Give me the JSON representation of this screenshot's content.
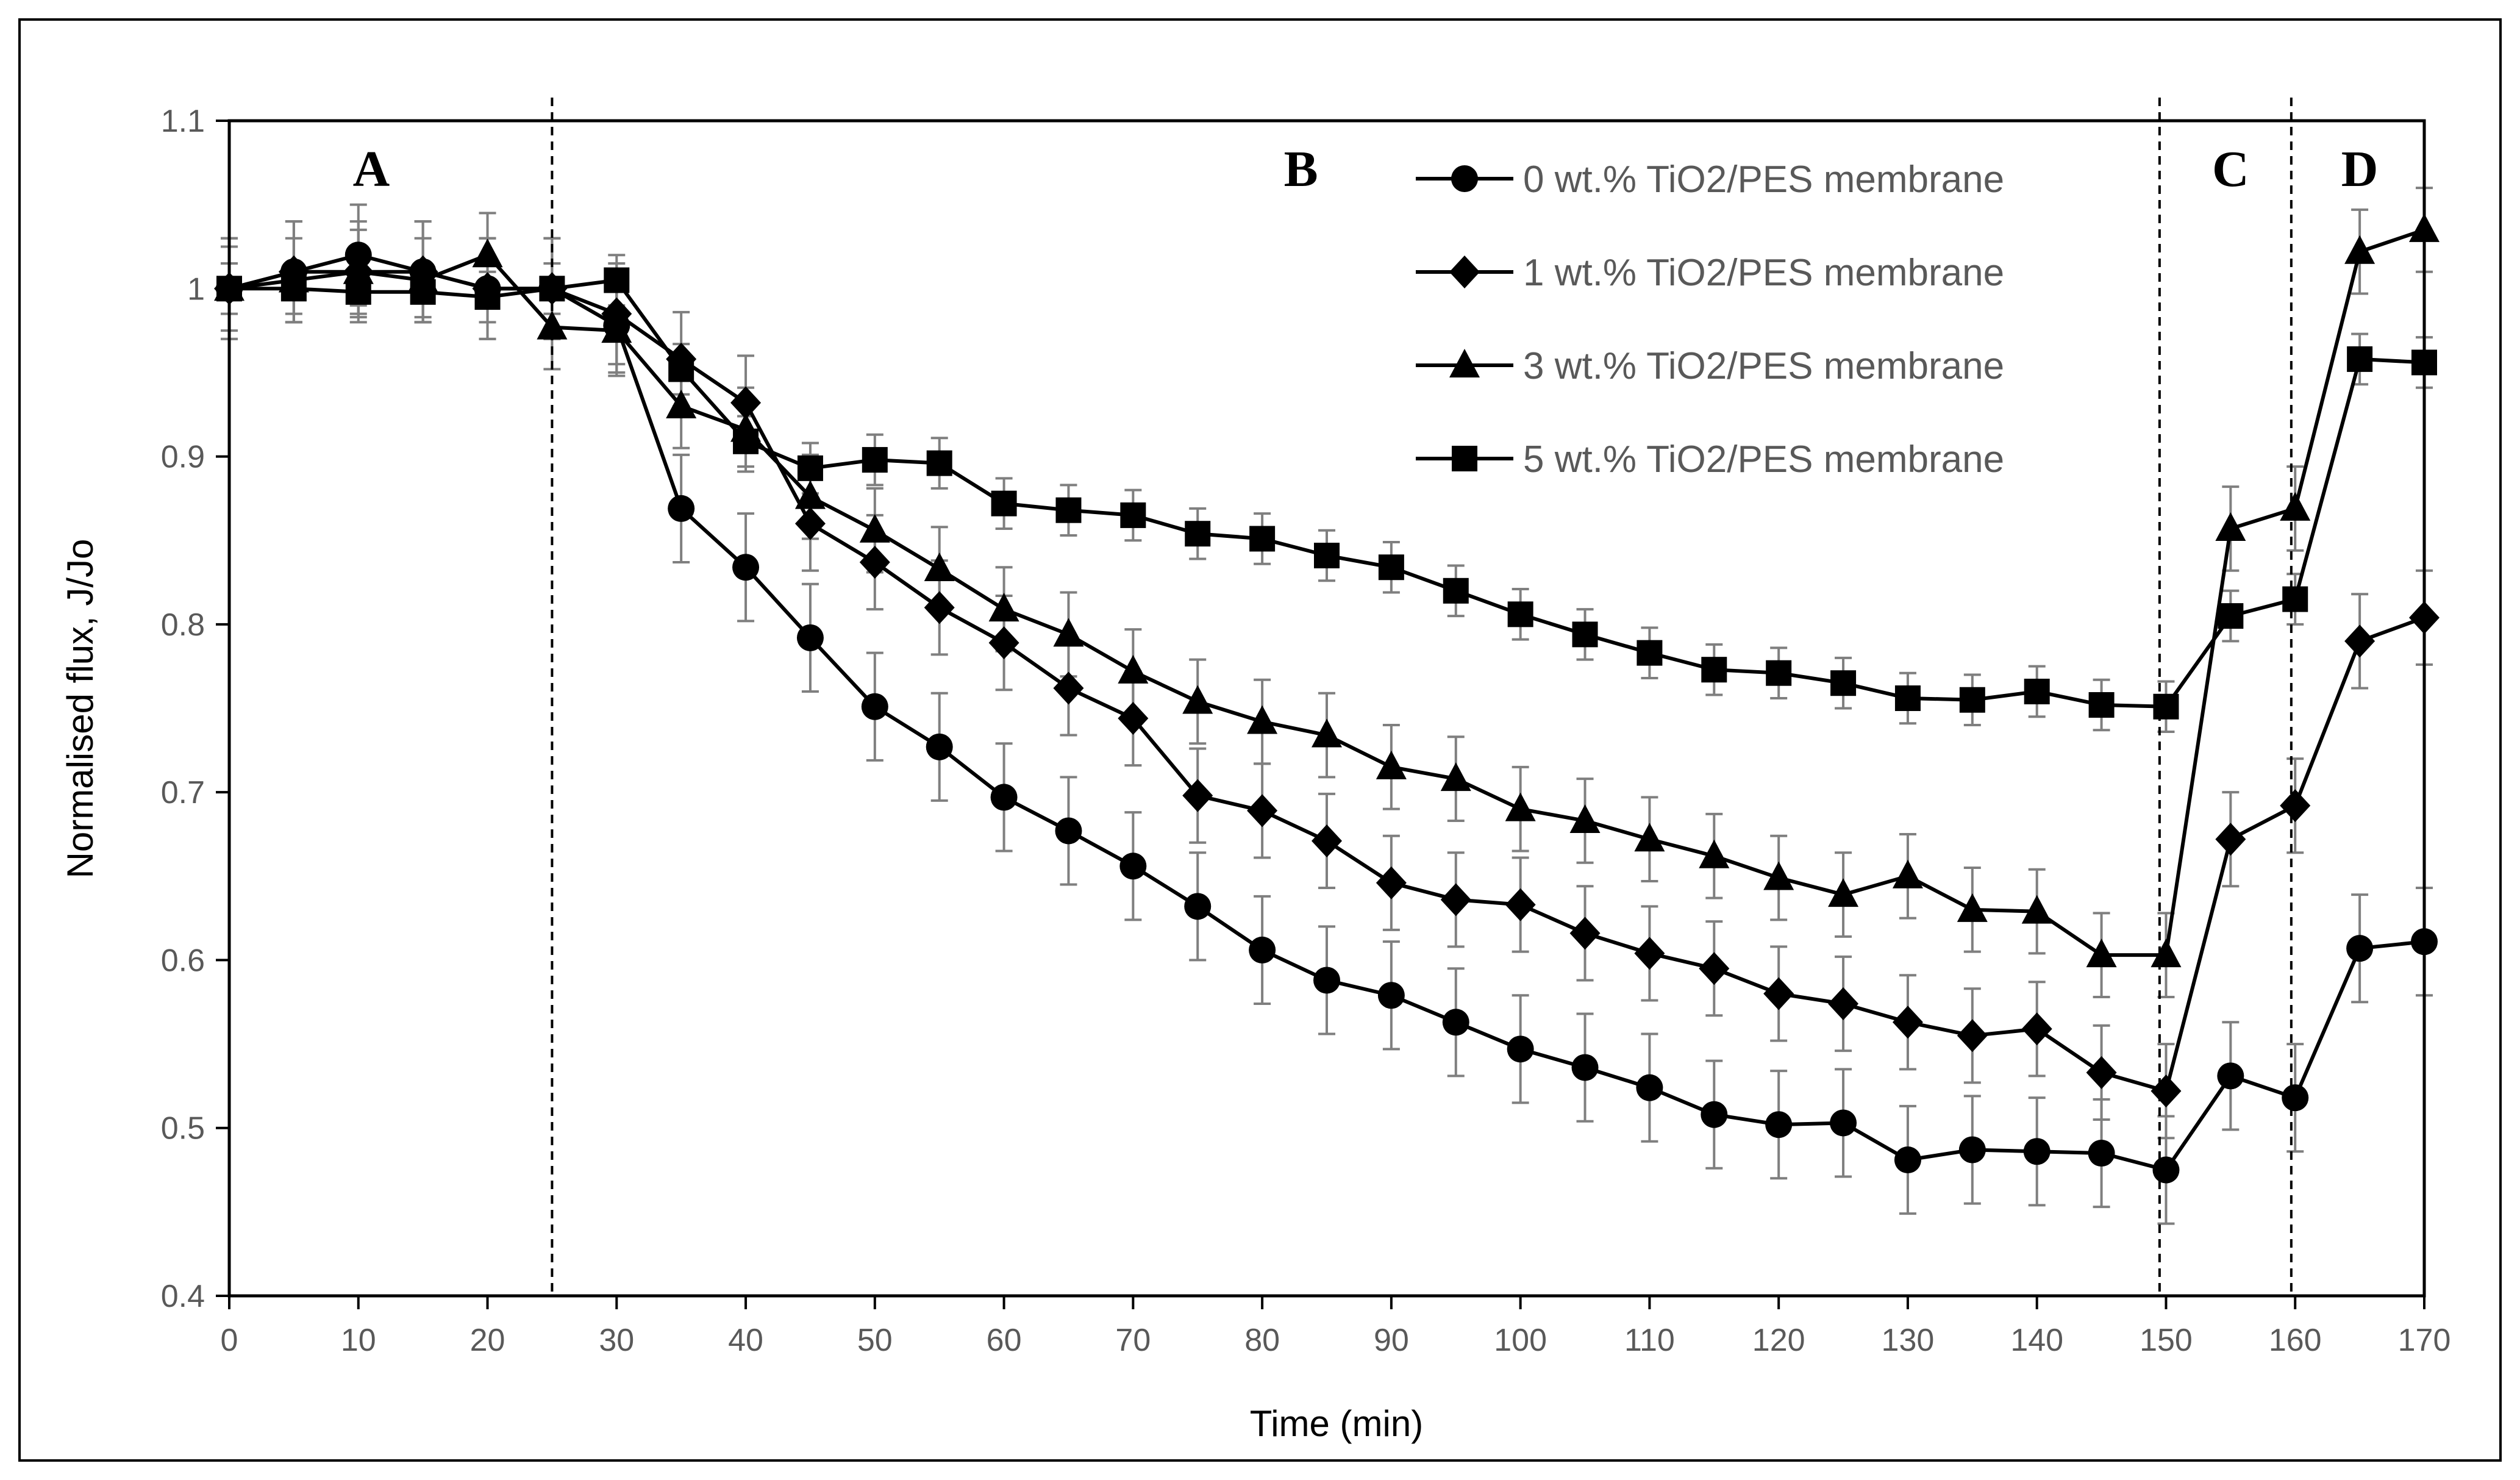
{
  "chart_data": {
    "type": "line",
    "title": "",
    "xlabel": "Time (min)",
    "ylabel": "Normalised flux, J/Jo",
    "xlim": [
      0,
      170
    ],
    "ylim": [
      0.4,
      1.1
    ],
    "x_ticks": [
      0,
      10,
      20,
      30,
      40,
      50,
      60,
      70,
      80,
      90,
      100,
      110,
      120,
      130,
      140,
      150,
      160,
      170
    ],
    "y_ticks": [
      0.4,
      0.5,
      0.6,
      0.7,
      0.8,
      0.9,
      1,
      1.1
    ],
    "x_tick_labels": [
      "0",
      "10",
      "20",
      "30",
      "40",
      "50",
      "60",
      "70",
      "80",
      "90",
      "100",
      "110",
      "120",
      "130",
      "140",
      "150",
      "160",
      "170"
    ],
    "y_tick_labels": [
      "0.4",
      "0.5",
      "0.6",
      "0.7",
      "0.8",
      "0.9",
      "1",
      "1.1"
    ],
    "grid": false,
    "legend_position": "top-right",
    "regions": [
      {
        "label": "A",
        "x": 11
      },
      {
        "label": "B",
        "x": 83
      },
      {
        "label": "C",
        "x": 155
      },
      {
        "label": "D",
        "x": 165
      }
    ],
    "boundaries": [
      25,
      149.5,
      159.7
    ],
    "x": [
      0,
      5,
      10,
      15,
      20,
      25,
      30,
      35,
      40,
      45,
      50,
      55,
      60,
      65,
      70,
      75,
      80,
      85,
      90,
      95,
      100,
      105,
      110,
      115,
      120,
      125,
      130,
      135,
      140,
      145,
      150,
      155,
      160,
      165,
      170
    ],
    "series": [
      {
        "name": "0 wt.% TiO2/PES membrane",
        "marker": "circle",
        "values": [
          1.0,
          1.01,
          1.02,
          1.01,
          1.0,
          1.0,
          0.978,
          0.869,
          0.834,
          0.792,
          0.751,
          0.727,
          0.697,
          0.677,
          0.656,
          0.632,
          0.606,
          0.588,
          0.579,
          0.563,
          0.547,
          0.536,
          0.524,
          0.508,
          0.502,
          0.503,
          0.481,
          0.487,
          0.486,
          0.485,
          0.475,
          0.531,
          0.518,
          0.607,
          0.611
        ],
        "errors": [
          0.03,
          0.03,
          0.03,
          0.03,
          0.03,
          0.03,
          0.03,
          0.032,
          0.032,
          0.032,
          0.032,
          0.032,
          0.032,
          0.032,
          0.032,
          0.032,
          0.032,
          0.032,
          0.032,
          0.032,
          0.032,
          0.032,
          0.032,
          0.032,
          0.032,
          0.032,
          0.032,
          0.032,
          0.032,
          0.032,
          0.032,
          0.032,
          0.032,
          0.032,
          0.032
        ]
      },
      {
        "name": "1 wt.% TiO2/PES membrane",
        "marker": "diamond",
        "values": [
          1.0,
          1.01,
          1.01,
          1.01,
          1.0,
          1.0,
          0.985,
          0.958,
          0.932,
          0.86,
          0.837,
          0.81,
          0.789,
          0.762,
          0.744,
          0.698,
          0.689,
          0.671,
          0.646,
          0.636,
          0.633,
          0.616,
          0.604,
          0.595,
          0.58,
          0.574,
          0.563,
          0.555,
          0.559,
          0.533,
          0.522,
          0.672,
          0.692,
          0.79,
          0.804
        ],
        "errors": [
          0.03,
          0.03,
          0.03,
          0.03,
          0.03,
          0.03,
          0.03,
          0.028,
          0.028,
          0.028,
          0.028,
          0.028,
          0.028,
          0.028,
          0.028,
          0.028,
          0.028,
          0.028,
          0.028,
          0.028,
          0.028,
          0.028,
          0.028,
          0.028,
          0.028,
          0.028,
          0.028,
          0.028,
          0.028,
          0.028,
          0.028,
          0.028,
          0.028,
          0.028,
          0.028
        ]
      },
      {
        "name": "3 wt.% TiO2/PES membrane",
        "marker": "triangle",
        "values": [
          1.0,
          1.005,
          1.01,
          1.005,
          1.02,
          0.977,
          0.975,
          0.93,
          0.916,
          0.876,
          0.856,
          0.833,
          0.809,
          0.794,
          0.772,
          0.754,
          0.742,
          0.734,
          0.715,
          0.708,
          0.69,
          0.683,
          0.672,
          0.662,
          0.649,
          0.639,
          0.65,
          0.63,
          0.629,
          0.603,
          0.603,
          0.857,
          0.869,
          1.022,
          1.035
        ],
        "errors": [
          0.025,
          0.025,
          0.025,
          0.025,
          0.025,
          0.025,
          0.025,
          0.025,
          0.025,
          0.025,
          0.025,
          0.025,
          0.025,
          0.025,
          0.025,
          0.025,
          0.025,
          0.025,
          0.025,
          0.025,
          0.025,
          0.025,
          0.025,
          0.025,
          0.025,
          0.025,
          0.025,
          0.025,
          0.025,
          0.025,
          0.025,
          0.025,
          0.025,
          0.025,
          0.025
        ]
      },
      {
        "name": "5 wt.% TiO2/PES membrane",
        "marker": "square",
        "values": [
          1.0,
          1.0,
          0.998,
          0.998,
          0.995,
          1.0,
          1.005,
          0.952,
          0.909,
          0.893,
          0.898,
          0.896,
          0.872,
          0.868,
          0.865,
          0.854,
          0.851,
          0.841,
          0.834,
          0.82,
          0.806,
          0.794,
          0.783,
          0.773,
          0.771,
          0.765,
          0.756,
          0.755,
          0.76,
          0.752,
          0.751,
          0.805,
          0.815,
          0.958,
          0.956
        ],
        "errors": [
          0.015,
          0.015,
          0.015,
          0.015,
          0.015,
          0.015,
          0.015,
          0.015,
          0.015,
          0.015,
          0.015,
          0.015,
          0.015,
          0.015,
          0.015,
          0.015,
          0.015,
          0.015,
          0.015,
          0.015,
          0.015,
          0.015,
          0.015,
          0.015,
          0.015,
          0.015,
          0.015,
          0.015,
          0.015,
          0.015,
          0.015,
          0.015,
          0.015,
          0.015,
          0.015
        ]
      }
    ]
  }
}
